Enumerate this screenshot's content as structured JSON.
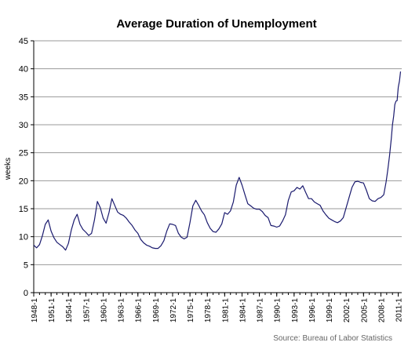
{
  "chart_data": {
    "type": "line",
    "title": "Average Duration of Unemployment",
    "ylabel": "weeks",
    "xlabel": "",
    "source": "Source: Bureau of Labor Statistics",
    "ylim": [
      0,
      45
    ],
    "yticks": [
      0,
      5,
      10,
      15,
      20,
      25,
      30,
      35,
      40,
      45
    ],
    "xlim": [
      1948.0,
      2011.6
    ],
    "xticks": [
      {
        "label": "1948-1",
        "x": 1948
      },
      {
        "label": "1951-1",
        "x": 1951
      },
      {
        "label": "1954-1",
        "x": 1954
      },
      {
        "label": "1957-1",
        "x": 1957
      },
      {
        "label": "1960-1",
        "x": 1960
      },
      {
        "label": "1963-1",
        "x": 1963
      },
      {
        "label": "1966-1",
        "x": 1966
      },
      {
        "label": "1969-1",
        "x": 1969
      },
      {
        "label": "1972-1",
        "x": 1972
      },
      {
        "label": "1975-1",
        "x": 1975
      },
      {
        "label": "1978-1",
        "x": 1978
      },
      {
        "label": "1981-1",
        "x": 1981
      },
      {
        "label": "1984-1",
        "x": 1984
      },
      {
        "label": "1987-1",
        "x": 1987
      },
      {
        "label": "1990-1",
        "x": 1990
      },
      {
        "label": "1993-1",
        "x": 1993
      },
      {
        "label": "1996-1",
        "x": 1996
      },
      {
        "label": "1999-1",
        "x": 1999
      },
      {
        "label": "2002-1",
        "x": 2002
      },
      {
        "label": "2005-1",
        "x": 2005
      },
      {
        "label": "2008-1",
        "x": 2008
      },
      {
        "label": "2011-1",
        "x": 2011
      }
    ],
    "grid": true,
    "series": [
      {
        "color": "#1a1a6e",
        "points": [
          [
            1948.0,
            8.5
          ],
          [
            1948.5,
            8.0
          ],
          [
            1949.0,
            8.6
          ],
          [
            1949.5,
            10.2
          ],
          [
            1950.0,
            12.2
          ],
          [
            1950.5,
            13.0
          ],
          [
            1951.0,
            11.0
          ],
          [
            1951.5,
            9.8
          ],
          [
            1952.0,
            9.0
          ],
          [
            1952.5,
            8.6
          ],
          [
            1953.0,
            8.2
          ],
          [
            1953.5,
            7.6
          ],
          [
            1954.0,
            8.8
          ],
          [
            1954.5,
            11.2
          ],
          [
            1955.0,
            13.0
          ],
          [
            1955.5,
            14.0
          ],
          [
            1956.0,
            12.2
          ],
          [
            1956.5,
            11.3
          ],
          [
            1957.0,
            10.8
          ],
          [
            1957.5,
            10.2
          ],
          [
            1958.0,
            10.6
          ],
          [
            1958.5,
            13.0
          ],
          [
            1959.0,
            16.3
          ],
          [
            1959.5,
            15.2
          ],
          [
            1960.0,
            13.3
          ],
          [
            1960.5,
            12.4
          ],
          [
            1961.0,
            14.3
          ],
          [
            1961.5,
            16.8
          ],
          [
            1962.0,
            15.6
          ],
          [
            1962.5,
            14.4
          ],
          [
            1963.0,
            14.0
          ],
          [
            1963.5,
            13.8
          ],
          [
            1964.0,
            13.3
          ],
          [
            1964.5,
            12.6
          ],
          [
            1965.0,
            12.0
          ],
          [
            1965.5,
            11.2
          ],
          [
            1966.0,
            10.6
          ],
          [
            1966.5,
            9.5
          ],
          [
            1967.0,
            8.9
          ],
          [
            1967.5,
            8.5
          ],
          [
            1968.0,
            8.3
          ],
          [
            1968.5,
            8.0
          ],
          [
            1969.0,
            7.9
          ],
          [
            1969.5,
            7.9
          ],
          [
            1970.0,
            8.4
          ],
          [
            1970.5,
            9.3
          ],
          [
            1971.0,
            11.0
          ],
          [
            1971.5,
            12.3
          ],
          [
            1972.0,
            12.2
          ],
          [
            1972.5,
            12.0
          ],
          [
            1973.0,
            10.6
          ],
          [
            1973.5,
            9.9
          ],
          [
            1974.0,
            9.6
          ],
          [
            1974.5,
            9.9
          ],
          [
            1975.0,
            12.5
          ],
          [
            1975.5,
            15.5
          ],
          [
            1976.0,
            16.5
          ],
          [
            1976.5,
            15.6
          ],
          [
            1977.0,
            14.6
          ],
          [
            1977.5,
            13.9
          ],
          [
            1978.0,
            12.5
          ],
          [
            1978.5,
            11.5
          ],
          [
            1979.0,
            10.9
          ],
          [
            1979.5,
            10.8
          ],
          [
            1980.0,
            11.4
          ],
          [
            1980.5,
            12.3
          ],
          [
            1981.0,
            14.3
          ],
          [
            1981.5,
            14.0
          ],
          [
            1982.0,
            14.6
          ],
          [
            1982.5,
            16.2
          ],
          [
            1983.0,
            19.2
          ],
          [
            1983.5,
            20.6
          ],
          [
            1984.0,
            19.2
          ],
          [
            1984.5,
            17.5
          ],
          [
            1985.0,
            15.9
          ],
          [
            1985.5,
            15.5
          ],
          [
            1986.0,
            15.1
          ],
          [
            1986.5,
            14.9
          ],
          [
            1987.0,
            14.9
          ],
          [
            1987.5,
            14.5
          ],
          [
            1988.0,
            13.8
          ],
          [
            1988.5,
            13.4
          ],
          [
            1989.0,
            12.0
          ],
          [
            1989.5,
            11.9
          ],
          [
            1990.0,
            11.7
          ],
          [
            1990.5,
            11.9
          ],
          [
            1991.0,
            12.8
          ],
          [
            1991.5,
            13.9
          ],
          [
            1992.0,
            16.5
          ],
          [
            1992.5,
            18.0
          ],
          [
            1993.0,
            18.2
          ],
          [
            1993.5,
            18.8
          ],
          [
            1994.0,
            18.5
          ],
          [
            1994.5,
            19.1
          ],
          [
            1995.0,
            17.9
          ],
          [
            1995.5,
            16.8
          ],
          [
            1996.0,
            16.8
          ],
          [
            1996.5,
            16.2
          ],
          [
            1997.0,
            15.9
          ],
          [
            1997.5,
            15.6
          ],
          [
            1998.0,
            14.6
          ],
          [
            1998.5,
            13.9
          ],
          [
            1999.0,
            13.3
          ],
          [
            1999.5,
            13.0
          ],
          [
            2000.0,
            12.7
          ],
          [
            2000.5,
            12.5
          ],
          [
            2001.0,
            12.8
          ],
          [
            2001.5,
            13.4
          ],
          [
            2002.0,
            15.2
          ],
          [
            2002.5,
            17.0
          ],
          [
            2003.0,
            18.8
          ],
          [
            2003.5,
            19.8
          ],
          [
            2004.0,
            19.9
          ],
          [
            2004.5,
            19.7
          ],
          [
            2005.0,
            19.6
          ],
          [
            2005.5,
            18.3
          ],
          [
            2006.0,
            16.8
          ],
          [
            2006.5,
            16.4
          ],
          [
            2007.0,
            16.3
          ],
          [
            2007.5,
            16.8
          ],
          [
            2008.0,
            17.0
          ],
          [
            2008.5,
            17.5
          ],
          [
            2008.9,
            19.8
          ],
          [
            2009.2,
            22.0
          ],
          [
            2009.5,
            24.5
          ],
          [
            2009.8,
            27.5
          ],
          [
            2010.0,
            30.0
          ],
          [
            2010.2,
            31.5
          ],
          [
            2010.4,
            33.6
          ],
          [
            2010.6,
            34.2
          ],
          [
            2010.8,
            34.3
          ],
          [
            2011.0,
            36.7
          ],
          [
            2011.2,
            37.8
          ],
          [
            2011.4,
            39.5
          ]
        ]
      }
    ]
  }
}
